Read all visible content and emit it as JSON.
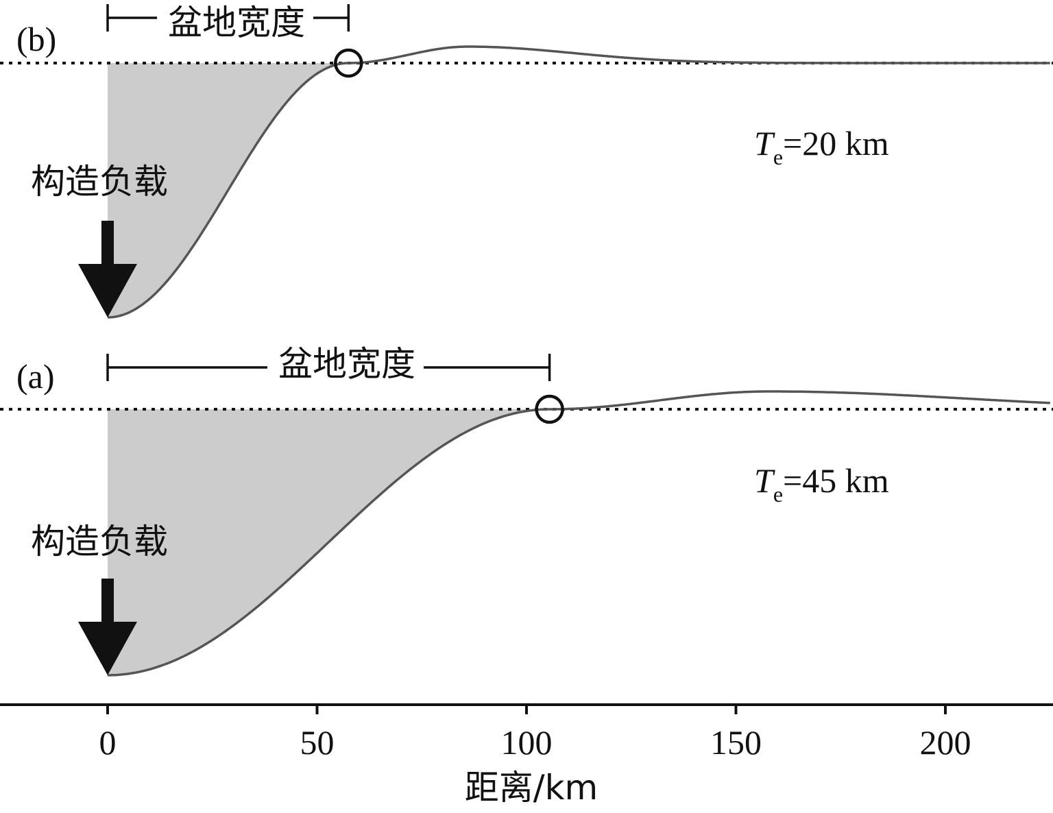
{
  "chart_data": {
    "type": "line",
    "xlabel": "距离/km",
    "xlim": [
      -25,
      225
    ],
    "xticks": [
      0,
      50,
      100,
      150,
      200
    ],
    "panels": [
      {
        "id": "b",
        "panel_label": "(b)",
        "te_symbol": "T",
        "te_subscript": "e",
        "te_value": "=20 km",
        "load_label": "构造负载",
        "basin_label": "盆地宽度",
        "basin_width_km": 57.5,
        "bulge_crest_km": 86,
        "fill_color": "#cccccc",
        "line_color": "#555555"
      },
      {
        "id": "a",
        "panel_label": "(a)",
        "te_symbol": "T",
        "te_subscript": "e",
        "te_value": "=45 km",
        "load_label": "构造负载",
        "basin_label": "盆地宽度",
        "basin_width_km": 105.5,
        "bulge_crest_km": 158,
        "fill_color": "#cccccc",
        "line_color": "#555555"
      }
    ]
  }
}
